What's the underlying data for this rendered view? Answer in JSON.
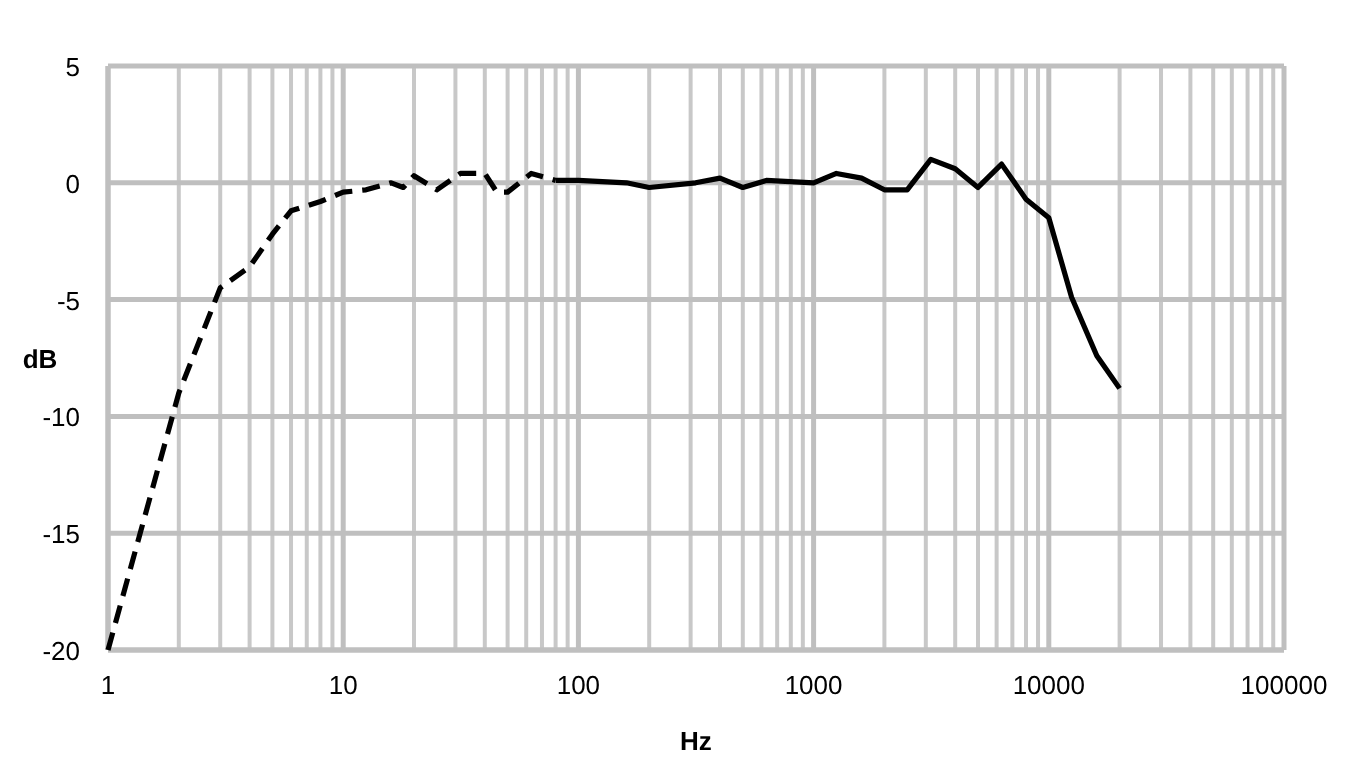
{
  "chart_data": {
    "type": "line",
    "xlabel": "Hz",
    "ylabel": "dB",
    "log": "x",
    "grid": true,
    "xlim": [
      1,
      100000
    ],
    "xticks": [
      1,
      10,
      100,
      1000,
      10000,
      100000
    ],
    "ylim": [
      -20,
      5
    ],
    "yticks": [
      -20,
      -15,
      -10,
      -5,
      0,
      5
    ],
    "marker": "none",
    "series": [
      {
        "color": "#000000",
        "line_style": "dashed",
        "x": [
          1,
          2,
          3,
          4,
          5,
          6,
          8,
          10,
          12.5,
          16,
          18,
          20,
          25,
          31.5,
          40,
          45,
          50,
          63,
          80
        ],
        "values": [
          -20,
          -9,
          -4.5,
          -3.6,
          -2.2,
          -1.2,
          -0.8,
          -0.4,
          -0.3,
          0,
          -0.2,
          0.3,
          -0.3,
          0.4,
          0.4,
          -0.4,
          -0.4,
          0.4,
          0.1
        ]
      },
      {
        "color": "#000000",
        "line_style": "solid",
        "x": [
          80,
          100,
          160,
          200,
          315,
          400,
          500,
          630,
          1000,
          1250,
          1600,
          2000,
          2500,
          3150,
          4000,
          5000,
          6300,
          8000,
          10000,
          12500,
          16000,
          20000
        ],
        "values": [
          0.1,
          0.1,
          0,
          -0.2,
          0,
          0.2,
          -0.2,
          0.1,
          0,
          0.4,
          0.2,
          -0.3,
          -0.3,
          1,
          0.6,
          -0.2,
          0.8,
          -0.7,
          -1.5,
          -4.9,
          -7.4,
          -8.8
        ]
      }
    ]
  }
}
